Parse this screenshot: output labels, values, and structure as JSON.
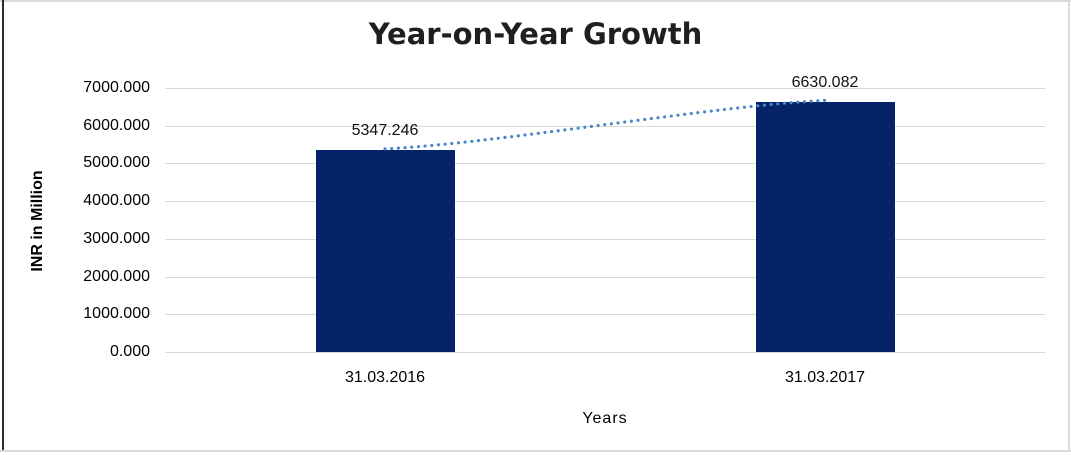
{
  "chart_data": {
    "type": "bar",
    "title": "Year-on-Year Growth",
    "xlabel": "Years",
    "ylabel": "INR in Million",
    "categories": [
      "31.03.2016",
      "31.03.2017"
    ],
    "values": [
      5347.246,
      6630.082
    ],
    "data_labels": [
      "5347.246",
      "6630.082"
    ],
    "ylim": [
      0,
      7000
    ],
    "ytick_step": 1000,
    "ytick_labels": [
      "0.000",
      "1000.000",
      "2000.000",
      "3000.000",
      "4000.000",
      "5000.000",
      "6000.000",
      "7000.000"
    ],
    "grid": true,
    "legend": "none",
    "bar_color": "#042369",
    "gridline_color": "#d9d9d9",
    "trendline": {
      "style": "dotted",
      "color": "#4a86c8"
    }
  }
}
